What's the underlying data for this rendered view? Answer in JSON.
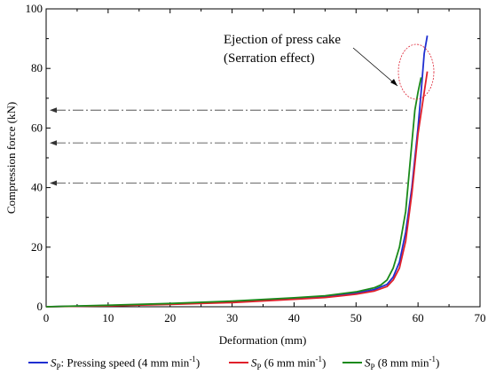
{
  "chart_data": {
    "type": "line",
    "xlabel": "Deformation (mm)",
    "ylabel": "Compression force (kN)",
    "xlim": [
      0,
      70
    ],
    "ylim": [
      0,
      100
    ],
    "xticks": [
      "0",
      "10",
      "20",
      "30",
      "40",
      "50",
      "60",
      "70"
    ],
    "yticks": [
      "0",
      "20",
      "40",
      "60",
      "80",
      "100"
    ],
    "grid": false,
    "legend_position": "bottom",
    "annotation": {
      "line1": "Ejection of press cake",
      "line2": "(Serration effect)"
    },
    "reference_levels": [
      66,
      55,
      41.5
    ],
    "series": [
      {
        "name": "SP: Pressing speed (4 mm min-1)",
        "color": "#1f2fd1",
        "x": [
          0,
          10,
          20,
          30,
          40,
          45,
          50,
          53,
          55,
          56,
          57,
          58,
          59,
          60,
          60.5,
          61,
          61.5
        ],
        "y": [
          0,
          0.4,
          0.9,
          1.6,
          2.7,
          3.4,
          4.6,
          5.8,
          7.5,
          10,
          15,
          25,
          40,
          60,
          72,
          85,
          91
        ]
      },
      {
        "name": "SP (6 mm min-1)",
        "color": "#e0202a",
        "x": [
          0,
          10,
          20,
          30,
          40,
          45,
          50,
          53,
          55,
          56,
          57,
          58,
          59,
          60,
          60.5,
          61,
          61.5
        ],
        "y": [
          0,
          0.3,
          0.8,
          1.4,
          2.5,
          3.1,
          4.2,
          5.3,
          6.8,
          9,
          13,
          22,
          38,
          58,
          65,
          72,
          79
        ]
      },
      {
        "name": "SP (8 mm min-1)",
        "color": "#1a8a1a",
        "x": [
          0,
          10,
          20,
          30,
          40,
          45,
          50,
          53,
          54,
          55,
          56,
          57,
          58,
          59,
          59.5,
          60,
          60.5
        ],
        "y": [
          0,
          0.5,
          1.1,
          1.9,
          3.0,
          3.7,
          5.0,
          6.4,
          7.3,
          9,
          13,
          20,
          32,
          55,
          66,
          72,
          77
        ]
      }
    ],
    "legend": [
      {
        "sym": "S",
        "sub": "P",
        "tail": ": Pressing speed (4 mm min",
        "sup": "-1",
        "end": ")",
        "color": "#1f2fd1"
      },
      {
        "sym": "S",
        "sub": "P",
        "tail": " (6 mm min",
        "sup": "-1",
        "end": ")",
        "color": "#e0202a"
      },
      {
        "sym": "S",
        "sub": "P",
        "tail": " (8 mm min",
        "sup": "-1",
        "end": ")",
        "color": "#1a8a1a"
      }
    ]
  }
}
